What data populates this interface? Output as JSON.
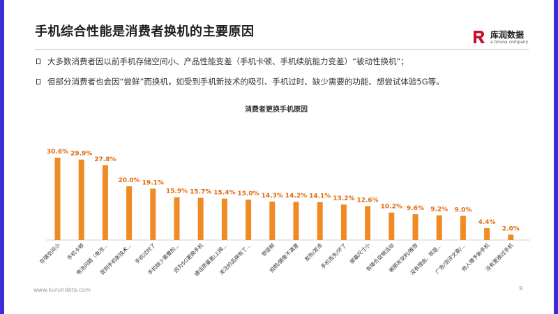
{
  "header": {
    "title": "手机综合性能是消费者换机的主要原因",
    "logo_text": "库润数据",
    "logo_sub": "a toluna company"
  },
  "bullets": [
    "大多数消费者因以前手机存储空间小、产品性能变差（手机卡顿、手机续航能力变差）“被动性换机”；",
    "但部分消费者也会因“尝鲜”而换机，如受到手机新技术的吸引、手机过时、缺少需要的功能、想尝试体验5G等。"
  ],
  "footer": {
    "url": "www.kurundata.com",
    "page": "9"
  },
  "colors": {
    "accent": "#3b2bd8",
    "bar": "#f08a24",
    "label": "#e06b0f",
    "logo_red": "#c8102e"
  },
  "chart_data": {
    "type": "bar",
    "title": "消费者更换手机原因",
    "categories": [
      "存储空间小",
      "手机卡顿",
      "电池问题（电池…",
      "受到手机新技术…",
      "手机过时了",
      "手机缺少需要的…",
      "因为5G更换手机",
      "通话质量差/上网…",
      "关注的品牌有了…",
      "想尝鲜",
      "拍照/摄像不满意",
      "发热/发烫",
      "手机丢失/坏了",
      "屏幕尺寸小",
      "有降价促销活动",
      "被朋友安利/推荐",
      "没有理由，就是…",
      "广告/测评文章/…",
      "他人赠予新手机",
      "没有更换过手机"
    ],
    "values": [
      30.6,
      29.9,
      27.8,
      20.0,
      19.1,
      15.9,
      15.7,
      15.4,
      15.0,
      14.3,
      14.2,
      14.1,
      13.2,
      12.6,
      10.2,
      9.6,
      9.2,
      9.0,
      4.4,
      2.0
    ],
    "labels": [
      "30.6%",
      "29.9%",
      "27.8%",
      "20.0%",
      "19.1%",
      "15.9%",
      "15.7%",
      "15.4%",
      "15.0%",
      "14.3%",
      "14.2%",
      "14.1%",
      "13.2%",
      "12.6%",
      "10.2%",
      "9.6%",
      "9.2%",
      "9.0%",
      "4.4%",
      "2.0%"
    ],
    "ylim": [
      0,
      35
    ],
    "grid": false,
    "legend": "none"
  }
}
